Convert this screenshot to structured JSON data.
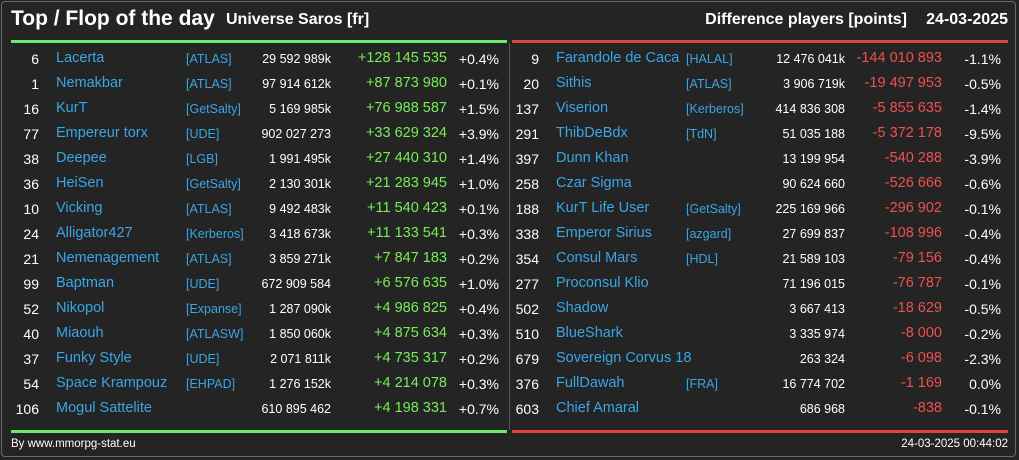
{
  "header": {
    "title": "Top / Flop of the day",
    "universe": "Universe Saros [fr]",
    "difference_label": "Difference players [points]",
    "date": "24-03-2025"
  },
  "top": [
    {
      "rank": "6",
      "name": "Lacerta",
      "alliance": "[ATLAS]",
      "points": "29 592 989k",
      "delta": "+128 145 535",
      "pct": "+0.4%"
    },
    {
      "rank": "1",
      "name": "Nemakbar",
      "alliance": "[ATLAS]",
      "points": "97 914 612k",
      "delta": "+87 873 980",
      "pct": "+0.1%"
    },
    {
      "rank": "16",
      "name": "KurT",
      "alliance": "[GetSalty]",
      "points": "5 169 985k",
      "delta": "+76 988 587",
      "pct": "+1.5%"
    },
    {
      "rank": "77",
      "name": "Empereur torx",
      "alliance": "[UDE]",
      "points": "902 027 273",
      "delta": "+33 629 324",
      "pct": "+3.9%"
    },
    {
      "rank": "38",
      "name": "Deepee",
      "alliance": "[LGB]",
      "points": "1 991 495k",
      "delta": "+27 440 310",
      "pct": "+1.4%"
    },
    {
      "rank": "36",
      "name": "HeiSen",
      "alliance": "[GetSalty]",
      "points": "2 130 301k",
      "delta": "+21 283 945",
      "pct": "+1.0%"
    },
    {
      "rank": "10",
      "name": "Vicking",
      "alliance": "[ATLAS]",
      "points": "9 492 483k",
      "delta": "+11 540 423",
      "pct": "+0.1%"
    },
    {
      "rank": "24",
      "name": "Alligator427",
      "alliance": "[Kerberos]",
      "points": "3 418 673k",
      "delta": "+11 133 541",
      "pct": "+0.3%"
    },
    {
      "rank": "21",
      "name": "Nemenagement",
      "alliance": "[ATLAS]",
      "points": "3 859 271k",
      "delta": "+7 847 183",
      "pct": "+0.2%"
    },
    {
      "rank": "99",
      "name": "Baptman",
      "alliance": "[UDE]",
      "points": "672 909 584",
      "delta": "+6 576 635",
      "pct": "+1.0%"
    },
    {
      "rank": "52",
      "name": "Nikopol",
      "alliance": "[Expanse]",
      "points": "1 287 090k",
      "delta": "+4 986 825",
      "pct": "+0.4%"
    },
    {
      "rank": "40",
      "name": "Miaouh",
      "alliance": "[ATLASW]",
      "points": "1 850 060k",
      "delta": "+4 875 634",
      "pct": "+0.3%"
    },
    {
      "rank": "37",
      "name": "Funky Style",
      "alliance": "[UDE]",
      "points": "2 071 811k",
      "delta": "+4 735 317",
      "pct": "+0.2%"
    },
    {
      "rank": "54",
      "name": "Space Krampouz",
      "alliance": "[EHPAD]",
      "points": "1 276 152k",
      "delta": "+4 214 078",
      "pct": "+0.3%"
    },
    {
      "rank": "106",
      "name": "Mogul Sattelite",
      "alliance": "",
      "points": "610 895 462",
      "delta": "+4 198 331",
      "pct": "+0.7%"
    }
  ],
  "flop": [
    {
      "rank": "9",
      "name": "Farandole de Caca",
      "alliance": "[HALAL]",
      "points": "12 476 041k",
      "delta": "-144 010 893",
      "pct": "-1.1%"
    },
    {
      "rank": "20",
      "name": "Sithis",
      "alliance": "[ATLAS]",
      "points": "3 906 719k",
      "delta": "-19 497 953",
      "pct": "-0.5%"
    },
    {
      "rank": "137",
      "name": "Viserion",
      "alliance": "[Kerberos]",
      "points": "414 836 308",
      "delta": "-5 855 635",
      "pct": "-1.4%"
    },
    {
      "rank": "291",
      "name": "ThibDeBdx",
      "alliance": "[TdN]",
      "points": "51 035 188",
      "delta": "-5 372 178",
      "pct": "-9.5%"
    },
    {
      "rank": "397",
      "name": "Dunn Khan",
      "alliance": "",
      "points": "13 199 954",
      "delta": "-540 288",
      "pct": "-3.9%"
    },
    {
      "rank": "258",
      "name": "Czar Sigma",
      "alliance": "",
      "points": "90 624 660",
      "delta": "-526 666",
      "pct": "-0.6%"
    },
    {
      "rank": "188",
      "name": "KurT Life User",
      "alliance": "[GetSalty]",
      "points": "225 169 966",
      "delta": "-296 902",
      "pct": "-0.1%"
    },
    {
      "rank": "338",
      "name": "Emperor Sirius",
      "alliance": "[azgard]",
      "points": "27 699 837",
      "delta": "-108 996",
      "pct": "-0.4%"
    },
    {
      "rank": "354",
      "name": "Consul Mars",
      "alliance": "[HDL]",
      "points": "21 589 103",
      "delta": "-79 156",
      "pct": "-0.4%"
    },
    {
      "rank": "277",
      "name": "Proconsul Klio",
      "alliance": "",
      "points": "71 196 015",
      "delta": "-76 787",
      "pct": "-0.1%"
    },
    {
      "rank": "502",
      "name": "Shadow",
      "alliance": "",
      "points": "3 667 413",
      "delta": "-18 629",
      "pct": "-0.5%"
    },
    {
      "rank": "510",
      "name": "BlueShark",
      "alliance": "",
      "points": "3 335 974",
      "delta": "-8 000",
      "pct": "-0.2%"
    },
    {
      "rank": "679",
      "name": "Sovereign Corvus 18",
      "alliance": "",
      "points": "263 324",
      "delta": "-6 098",
      "pct": "-2.3%"
    },
    {
      "rank": "376",
      "name": "FullDawah",
      "alliance": "[FRA]",
      "points": "16 774 702",
      "delta": "-1 169",
      "pct": "0.0%"
    },
    {
      "rank": "603",
      "name": "Chief Amaral",
      "alliance": "",
      "points": "686 968",
      "delta": "-838",
      "pct": "-0.1%"
    }
  ],
  "footer": {
    "source": "By www.mmorpg-stat.eu",
    "timestamp": "24-03-2025 00:44:02"
  },
  "colors": {
    "background": "#242424",
    "name_link": "#39a6e6",
    "gain": "#77ee55",
    "loss": "#ee5050",
    "top_bar": "#66ee66",
    "flop_bar": "#dd4444"
  }
}
